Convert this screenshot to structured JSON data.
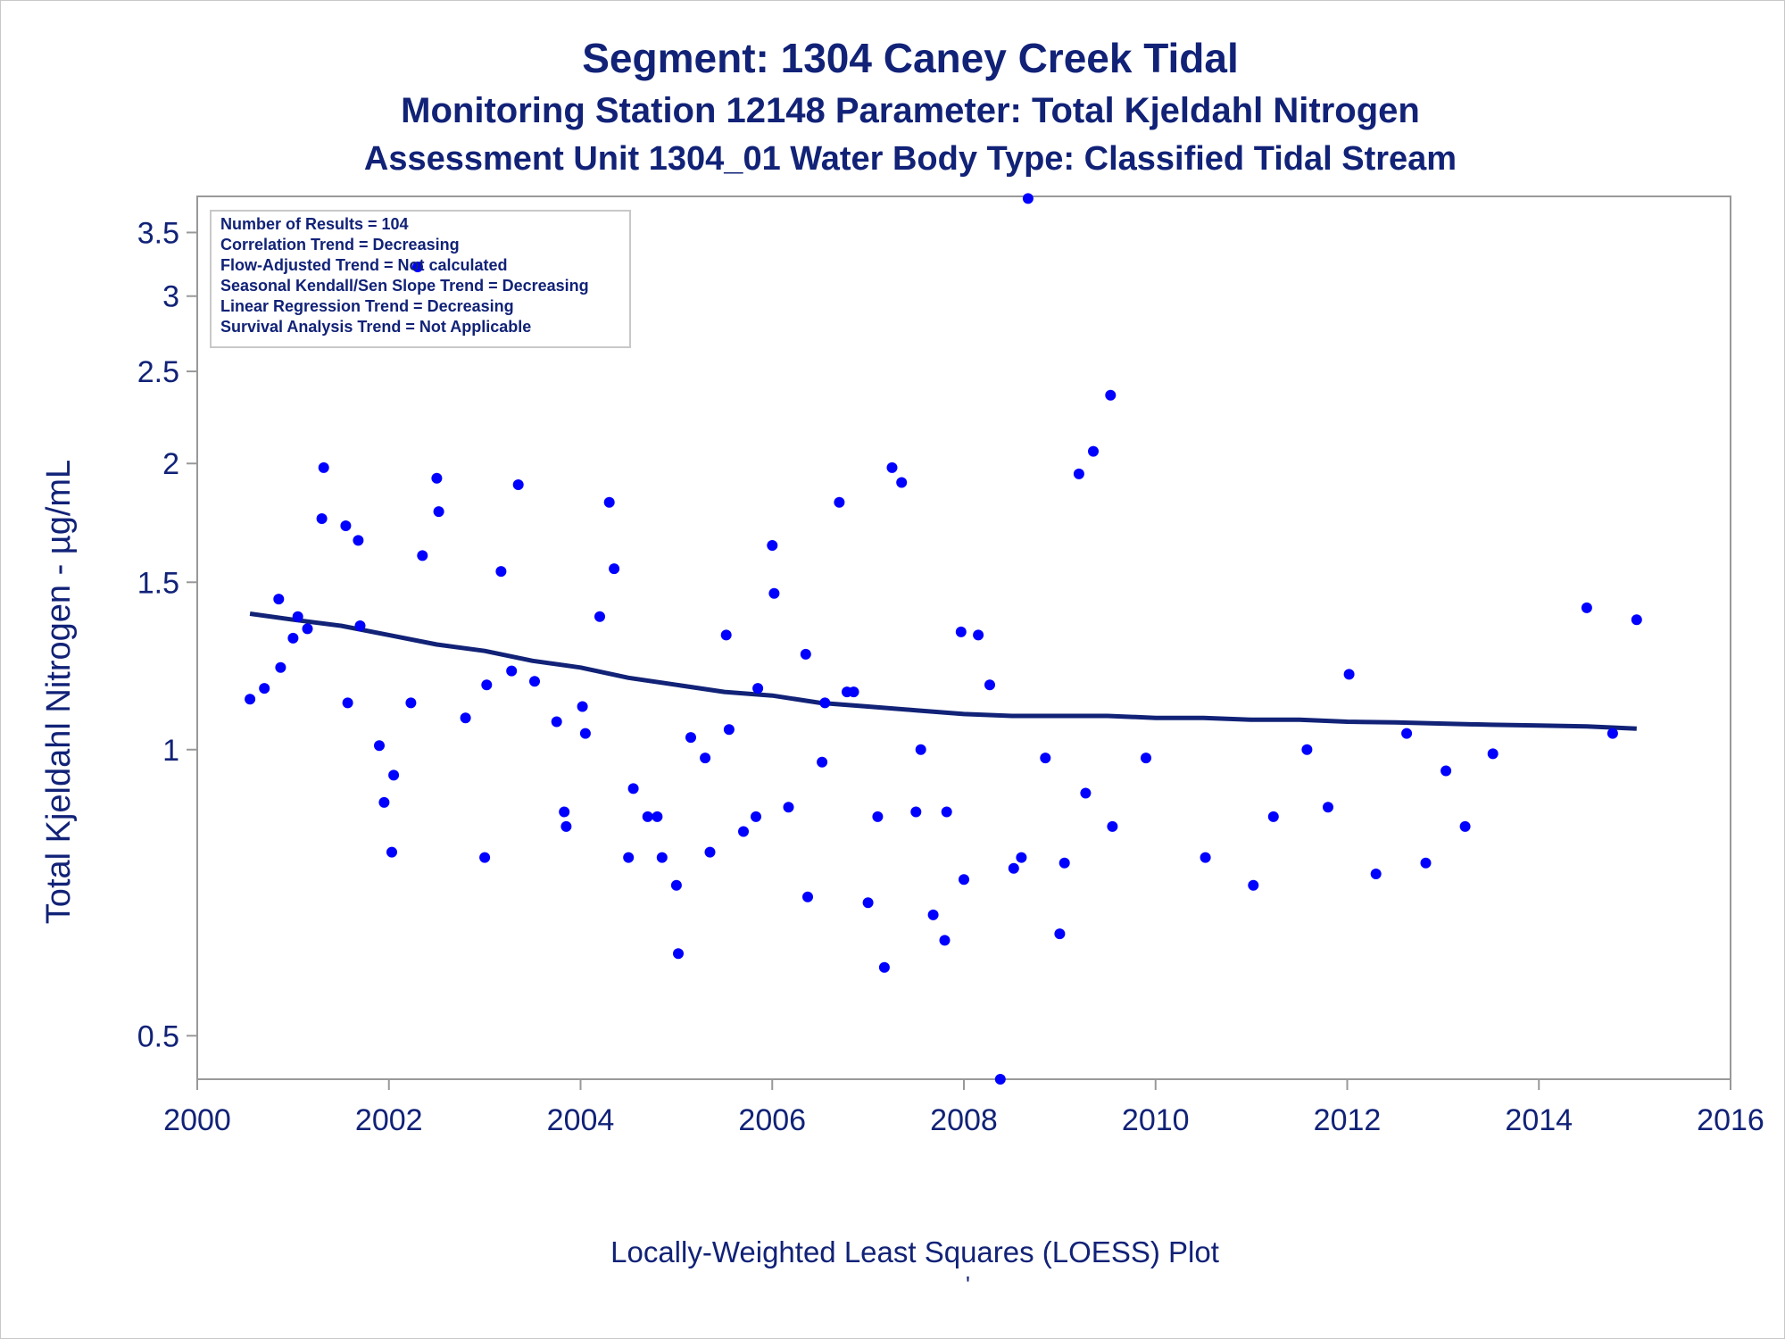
{
  "titles": {
    "line1": "Segment: 1304  Caney Creek Tidal",
    "line2": "Monitoring Station 12148 Parameter: Total Kjeldahl Nitrogen",
    "line3": "Assessment Unit 1304_01   Water Body Type: Classified Tidal Stream"
  },
  "footnote": "Locally-Weighted Least Squares (LOESS) Plot",
  "footnote_mark": "'",
  "stats_box": [
    "Number of Results = 104",
    "Correlation Trend = Decreasing",
    "Flow-Adjusted Trend = Not calculated",
    "Seasonal Kendall/Sen Slope Trend = Decreasing",
    "Linear Regression Trend = Decreasing",
    "Survival Analysis Trend = Not Applicable"
  ],
  "colors": {
    "text": "#112277",
    "points": "#0000ff",
    "loess_line": "#112277",
    "axis": "#999999"
  },
  "chart_data": {
    "type": "scatter",
    "title": "Segment: 1304  Caney Creek Tidal",
    "xlabel": "",
    "ylabel": "Total Kjeldahl Nitrogen -  µg/mL",
    "xlim": [
      2000,
      2016
    ],
    "ylim": [
      0.45,
      3.82
    ],
    "y_scale": "log",
    "grid": false,
    "x_ticks": [
      2000,
      2002,
      2004,
      2006,
      2008,
      2010,
      2012,
      2014,
      2016
    ],
    "x_tick_labels": [
      "2000",
      "2002",
      "2004",
      "2006",
      "2008",
      "2010",
      "2012",
      "2014",
      "2016"
    ],
    "y_ticks": [
      0.5,
      1,
      1.5,
      2,
      2.5,
      3,
      3.5
    ],
    "y_tick_labels": [
      "0.5",
      "1",
      "1.5",
      "2",
      "2.5",
      "3",
      "3.5"
    ],
    "series": [
      {
        "kind": "scatter",
        "points": [
          [
            2000.55,
            1.13
          ],
          [
            2000.7,
            1.16
          ],
          [
            2000.85,
            1.44
          ],
          [
            2000.87,
            1.22
          ],
          [
            2001.0,
            1.31
          ],
          [
            2001.05,
            1.38
          ],
          [
            2001.15,
            1.34
          ],
          [
            2001.3,
            1.75
          ],
          [
            2001.32,
            1.98
          ],
          [
            2001.55,
            1.72
          ],
          [
            2001.57,
            1.12
          ],
          [
            2001.68,
            1.66
          ],
          [
            2001.7,
            1.35
          ],
          [
            2001.9,
            1.01
          ],
          [
            2001.95,
            0.88
          ],
          [
            2002.03,
            0.78
          ],
          [
            2002.05,
            0.94
          ],
          [
            2002.23,
            1.12
          ],
          [
            2002.3,
            3.22
          ],
          [
            2002.35,
            1.6
          ],
          [
            2002.5,
            1.93
          ],
          [
            2002.52,
            1.78
          ],
          [
            2002.8,
            1.08
          ],
          [
            2003.0,
            0.77
          ],
          [
            2003.02,
            1.17
          ],
          [
            2003.17,
            1.54
          ],
          [
            2003.28,
            1.21
          ],
          [
            2003.35,
            1.9
          ],
          [
            2003.52,
            1.18
          ],
          [
            2003.75,
            1.07
          ],
          [
            2003.83,
            0.86
          ],
          [
            2003.85,
            0.83
          ],
          [
            2004.02,
            1.11
          ],
          [
            2004.05,
            1.04
          ],
          [
            2004.2,
            1.38
          ],
          [
            2004.3,
            1.82
          ],
          [
            2004.35,
            1.55
          ],
          [
            2004.5,
            0.77
          ],
          [
            2004.55,
            0.91
          ],
          [
            2004.7,
            0.85
          ],
          [
            2004.8,
            0.85
          ],
          [
            2004.85,
            0.77
          ],
          [
            2005.0,
            0.72
          ],
          [
            2005.02,
            0.61
          ],
          [
            2005.15,
            1.03
          ],
          [
            2005.3,
            0.98
          ],
          [
            2005.35,
            0.78
          ],
          [
            2005.52,
            1.32
          ],
          [
            2005.55,
            1.05
          ],
          [
            2005.7,
            0.82
          ],
          [
            2005.83,
            0.85
          ],
          [
            2005.85,
            1.16
          ],
          [
            2006.0,
            1.64
          ],
          [
            2006.02,
            1.46
          ],
          [
            2006.17,
            0.87
          ],
          [
            2006.35,
            1.26
          ],
          [
            2006.37,
            0.7
          ],
          [
            2006.52,
            0.97
          ],
          [
            2006.55,
            1.12
          ],
          [
            2006.7,
            1.82
          ],
          [
            2006.78,
            1.15
          ],
          [
            2006.85,
            1.15
          ],
          [
            2007.0,
            0.69
          ],
          [
            2007.1,
            0.85
          ],
          [
            2007.17,
            0.59
          ],
          [
            2007.25,
            1.98
          ],
          [
            2007.35,
            1.91
          ],
          [
            2007.5,
            0.86
          ],
          [
            2007.55,
            1.0
          ],
          [
            2007.68,
            0.67
          ],
          [
            2007.8,
            0.63
          ],
          [
            2007.82,
            0.86
          ],
          [
            2007.97,
            1.33
          ],
          [
            2008.0,
            0.73
          ],
          [
            2008.15,
            1.32
          ],
          [
            2008.27,
            1.17
          ],
          [
            2008.38,
            0.45
          ],
          [
            2008.52,
            0.75
          ],
          [
            2008.6,
            0.77
          ],
          [
            2008.67,
            3.8
          ],
          [
            2008.85,
            0.98
          ],
          [
            2009.0,
            0.64
          ],
          [
            2009.05,
            0.76
          ],
          [
            2009.2,
            1.95
          ],
          [
            2009.27,
            0.9
          ],
          [
            2009.35,
            2.06
          ],
          [
            2009.53,
            2.36
          ],
          [
            2009.55,
            0.83
          ],
          [
            2009.9,
            0.98
          ],
          [
            2010.52,
            0.77
          ],
          [
            2011.02,
            0.72
          ],
          [
            2011.23,
            0.85
          ],
          [
            2011.58,
            1.0
          ],
          [
            2011.8,
            0.87
          ],
          [
            2012.02,
            1.2
          ],
          [
            2012.3,
            0.74
          ],
          [
            2012.62,
            1.04
          ],
          [
            2012.82,
            0.76
          ],
          [
            2013.03,
            0.95
          ],
          [
            2013.23,
            0.83
          ],
          [
            2013.52,
            0.99
          ],
          [
            2014.5,
            1.41
          ],
          [
            2014.77,
            1.04
          ],
          [
            2015.02,
            1.37
          ]
        ]
      },
      {
        "kind": "line",
        "name": "LOESS",
        "points": [
          [
            2000.55,
            1.39
          ],
          [
            2001.0,
            1.37
          ],
          [
            2001.5,
            1.35
          ],
          [
            2002.0,
            1.32
          ],
          [
            2002.5,
            1.29
          ],
          [
            2003.0,
            1.27
          ],
          [
            2003.5,
            1.24
          ],
          [
            2004.0,
            1.22
          ],
          [
            2004.5,
            1.19
          ],
          [
            2005.0,
            1.17
          ],
          [
            2005.5,
            1.15
          ],
          [
            2006.0,
            1.14
          ],
          [
            2006.5,
            1.12
          ],
          [
            2007.0,
            1.11
          ],
          [
            2007.5,
            1.1
          ],
          [
            2008.0,
            1.09
          ],
          [
            2008.5,
            1.085
          ],
          [
            2009.0,
            1.085
          ],
          [
            2009.5,
            1.085
          ],
          [
            2010.0,
            1.08
          ],
          [
            2010.5,
            1.08
          ],
          [
            2011.0,
            1.075
          ],
          [
            2011.5,
            1.075
          ],
          [
            2012.0,
            1.07
          ],
          [
            2012.5,
            1.068
          ],
          [
            2013.0,
            1.065
          ],
          [
            2013.5,
            1.062
          ],
          [
            2014.0,
            1.06
          ],
          [
            2014.5,
            1.058
          ],
          [
            2015.02,
            1.052
          ]
        ]
      }
    ]
  }
}
